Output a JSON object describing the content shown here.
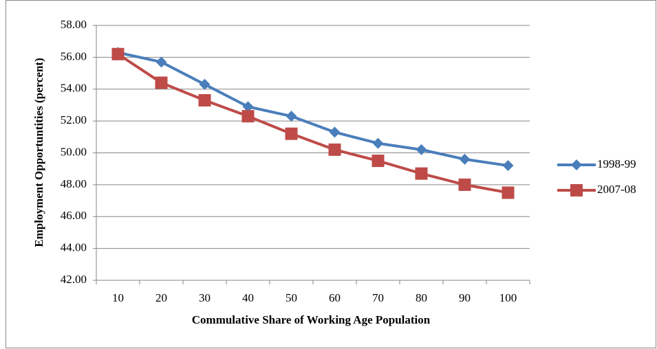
{
  "chart_data": {
    "type": "line",
    "x_label": "Commulative Share of Working Age Population",
    "y_label": "Employment Opportuntities  (percent)",
    "categories": [
      "10",
      "20",
      "30",
      "40",
      "50",
      "60",
      "70",
      "80",
      "90",
      "100"
    ],
    "series": [
      {
        "name": "1998-99",
        "color": "#4a7ebb",
        "marker": "diamond",
        "values": [
          56.3,
          55.7,
          54.3,
          52.9,
          52.3,
          51.3,
          50.6,
          50.2,
          49.6,
          49.2
        ]
      },
      {
        "name": "2007-08",
        "color": "#be4b48",
        "marker": "square",
        "values": [
          56.2,
          54.4,
          53.3,
          52.3,
          51.2,
          50.2,
          49.5,
          48.7,
          48.0,
          47.5
        ]
      }
    ],
    "ylim": [
      42,
      58
    ],
    "yticks": [
      {
        "value": 42,
        "label": "42.00"
      },
      {
        "value": 44,
        "label": "44.00"
      },
      {
        "value": 46,
        "label": "46.00"
      },
      {
        "value": 48,
        "label": "48.00"
      },
      {
        "value": 50,
        "label": "50.00"
      },
      {
        "value": 52,
        "label": "52.00"
      },
      {
        "value": 54,
        "label": "54.00"
      },
      {
        "value": 56,
        "label": "56.00"
      },
      {
        "value": 58,
        "label": "58.00"
      }
    ],
    "grid": true,
    "legend": "right"
  }
}
